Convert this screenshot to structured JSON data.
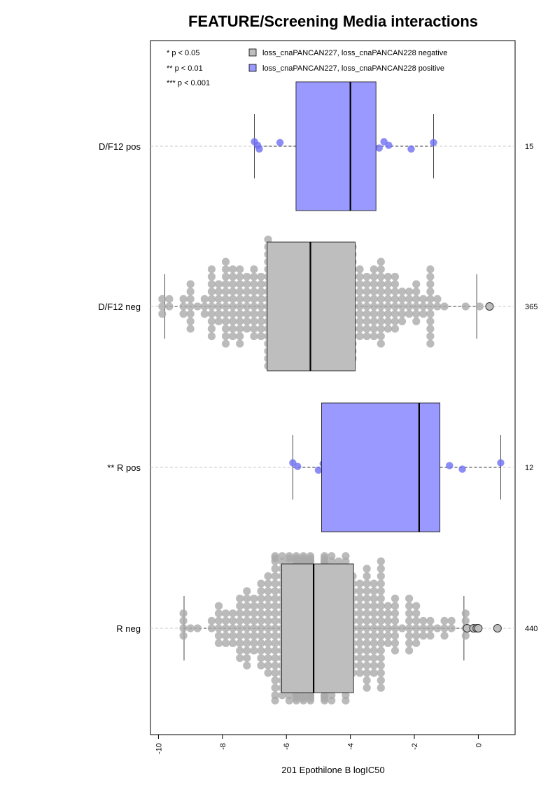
{
  "chart_data": {
    "type": "boxplot-beeswarm",
    "title": "FEATURE/Screening Media interactions",
    "xlabel": "201 Epothilone B logIC50",
    "xlim": [
      -10.25,
      1.15
    ],
    "x_ticks": [
      -10,
      -8,
      -6,
      -4,
      -2,
      0
    ],
    "x_tick_labels": [
      "-10",
      "-8",
      "-6",
      "-4",
      "-2",
      "0"
    ],
    "significance_legend": [
      "* p < 0.05",
      "** p < 0.01",
      "*** p < 0.001"
    ],
    "legend": [
      {
        "label": "loss_cnaPANCAN227, loss_cnaPANCAN228 negative",
        "color": "#bebebe"
      },
      {
        "label": "loss_cnaPANCAN227, loss_cnaPANCAN228 positive",
        "color": "#9999ff"
      }
    ],
    "colors": {
      "neg_fill": "#bebebe",
      "pos_fill": "#9999ff",
      "neg_point": "#aaaaaa",
      "pos_point": "#6f6ff5"
    },
    "groups": [
      {
        "label": "D/F12 pos",
        "count": "15",
        "group": "positive",
        "whisker_low": -7.0,
        "q1": -5.7,
        "median": -4.0,
        "q3": -3.2,
        "whisker_high": -1.4,
        "outliers": [],
        "points": [
          -7.0,
          -6.9,
          -6.85,
          -6.2,
          -5.3,
          -4.1,
          -4.05,
          -4.0,
          -3.9,
          -3.3,
          -3.1,
          -2.95,
          -2.8,
          -2.1,
          -1.4
        ]
      },
      {
        "label": "D/F12 neg",
        "count": "365",
        "group": "negative",
        "whisker_low": -9.8,
        "q1": -6.6,
        "median": -5.25,
        "q3": -3.85,
        "whisker_high": -0.05,
        "outliers": [
          0.35
        ],
        "points": []
      },
      {
        "label": "** R pos",
        "count": "12",
        "group": "positive",
        "whisker_low": -5.8,
        "q1": -4.9,
        "median": -1.85,
        "q3": -1.2,
        "whisker_high": 0.7,
        "outliers": [],
        "points": [
          -5.8,
          -5.65,
          -5.0,
          -4.85,
          -3.6,
          -1.9,
          -1.85,
          -1.8,
          -1.5,
          -0.9,
          -0.5,
          0.7
        ]
      },
      {
        "label": "R neg",
        "count": "440",
        "group": "negative",
        "whisker_low": -9.2,
        "q1": -6.15,
        "median": -5.15,
        "q3": -3.9,
        "whisker_high": -0.45,
        "outliers": [
          -0.35,
          -0.15,
          -0.05,
          0.0,
          0.6
        ],
        "points": []
      }
    ]
  }
}
